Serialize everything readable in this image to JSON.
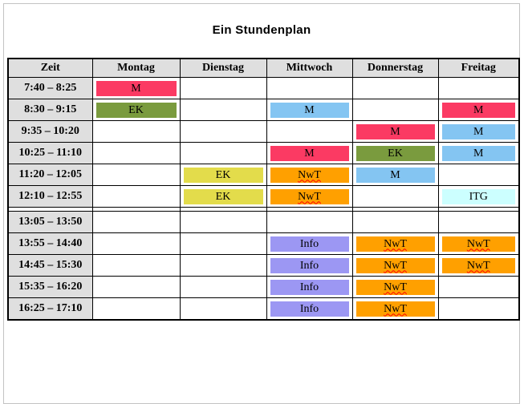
{
  "page": {
    "title": "Ein Stundenplan"
  },
  "colors": {
    "pink": "#fb3a63",
    "green": "#7a9b3e",
    "blue": "#84c5f2",
    "yellow": "#e3dc4b",
    "orange": "#ffa000",
    "purple": "#9c97f3",
    "cyan": "#ccffff",
    "header_bg": "#dfdfdf",
    "squiggle_red": "#ff0000"
  },
  "table": {
    "headers": [
      "Zeit",
      "Montag",
      "Dienstag",
      "Mittwoch",
      "Donnerstag",
      "Freitag"
    ],
    "rows": [
      {
        "time": "7:40 – 8:25",
        "cells": [
          {
            "label": "M",
            "color": "pink"
          },
          null,
          null,
          null,
          null
        ]
      },
      {
        "time": "8:30 – 9:15",
        "cells": [
          {
            "label": "EK",
            "color": "green"
          },
          null,
          {
            "label": "M",
            "color": "blue"
          },
          null,
          {
            "label": "M",
            "color": "pink"
          }
        ]
      },
      {
        "time": "9:35 – 10:20",
        "cells": [
          null,
          null,
          null,
          {
            "label": "M",
            "color": "pink"
          },
          {
            "label": "M",
            "color": "blue"
          }
        ]
      },
      {
        "time": "10:25 – 11:10",
        "cells": [
          null,
          null,
          {
            "label": "M",
            "color": "pink"
          },
          {
            "label": "EK",
            "color": "green"
          },
          {
            "label": "M",
            "color": "blue"
          }
        ]
      },
      {
        "time": "11:20 – 12:05",
        "cells": [
          null,
          {
            "label": "EK",
            "color": "yellow"
          },
          {
            "label": "NwT",
            "color": "orange",
            "squiggle": true
          },
          {
            "label": "M",
            "color": "blue"
          },
          null
        ]
      },
      {
        "time": "12:10 – 12:55",
        "section_end": true,
        "cells": [
          null,
          {
            "label": "EK",
            "color": "yellow"
          },
          {
            "label": "NwT",
            "color": "orange",
            "squiggle": true
          },
          null,
          {
            "label": "ITG",
            "color": "cyan"
          }
        ]
      },
      {
        "time": "13:05 – 13:50",
        "cells": [
          null,
          null,
          null,
          null,
          null
        ]
      },
      {
        "time": "13:55 – 14:40",
        "cells": [
          null,
          null,
          {
            "label": "Info",
            "color": "purple"
          },
          {
            "label": "NwT",
            "color": "orange",
            "squiggle": true
          },
          {
            "label": "NwT",
            "color": "orange",
            "squiggle": true
          }
        ]
      },
      {
        "time": "14:45 – 15:30",
        "cells": [
          null,
          null,
          {
            "label": "Info",
            "color": "purple"
          },
          {
            "label": "NwT",
            "color": "orange",
            "squiggle": true
          },
          {
            "label": "NwT",
            "color": "orange",
            "squiggle": true
          }
        ]
      },
      {
        "time": "15:35 – 16:20",
        "cells": [
          null,
          null,
          {
            "label": "Info",
            "color": "purple"
          },
          {
            "label": "NwT",
            "color": "orange",
            "squiggle": true
          },
          null
        ]
      },
      {
        "time": "16:25 – 17:10",
        "cells": [
          null,
          null,
          {
            "label": "Info",
            "color": "purple"
          },
          {
            "label": "NwT",
            "color": "orange",
            "squiggle": true
          },
          null
        ]
      }
    ]
  }
}
